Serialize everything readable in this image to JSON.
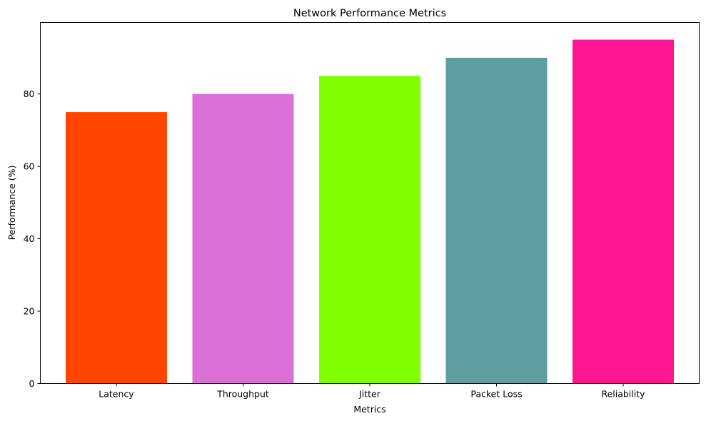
{
  "chart_data": {
    "type": "bar",
    "title": "Network Performance Metrics",
    "xlabel": "Metrics",
    "ylabel": "Performance (%)",
    "categories": [
      "Latency",
      "Throughput",
      "Jitter",
      "Packet Loss",
      "Reliability"
    ],
    "values": [
      75,
      80,
      85,
      90,
      95
    ],
    "colors": [
      "#ff4500",
      "#da70d6",
      "#7fff00",
      "#5f9ea0",
      "#ff1493"
    ],
    "ylim": [
      0,
      99.75
    ],
    "yticks": [
      0,
      20,
      40,
      60,
      80
    ],
    "grid": false
  }
}
